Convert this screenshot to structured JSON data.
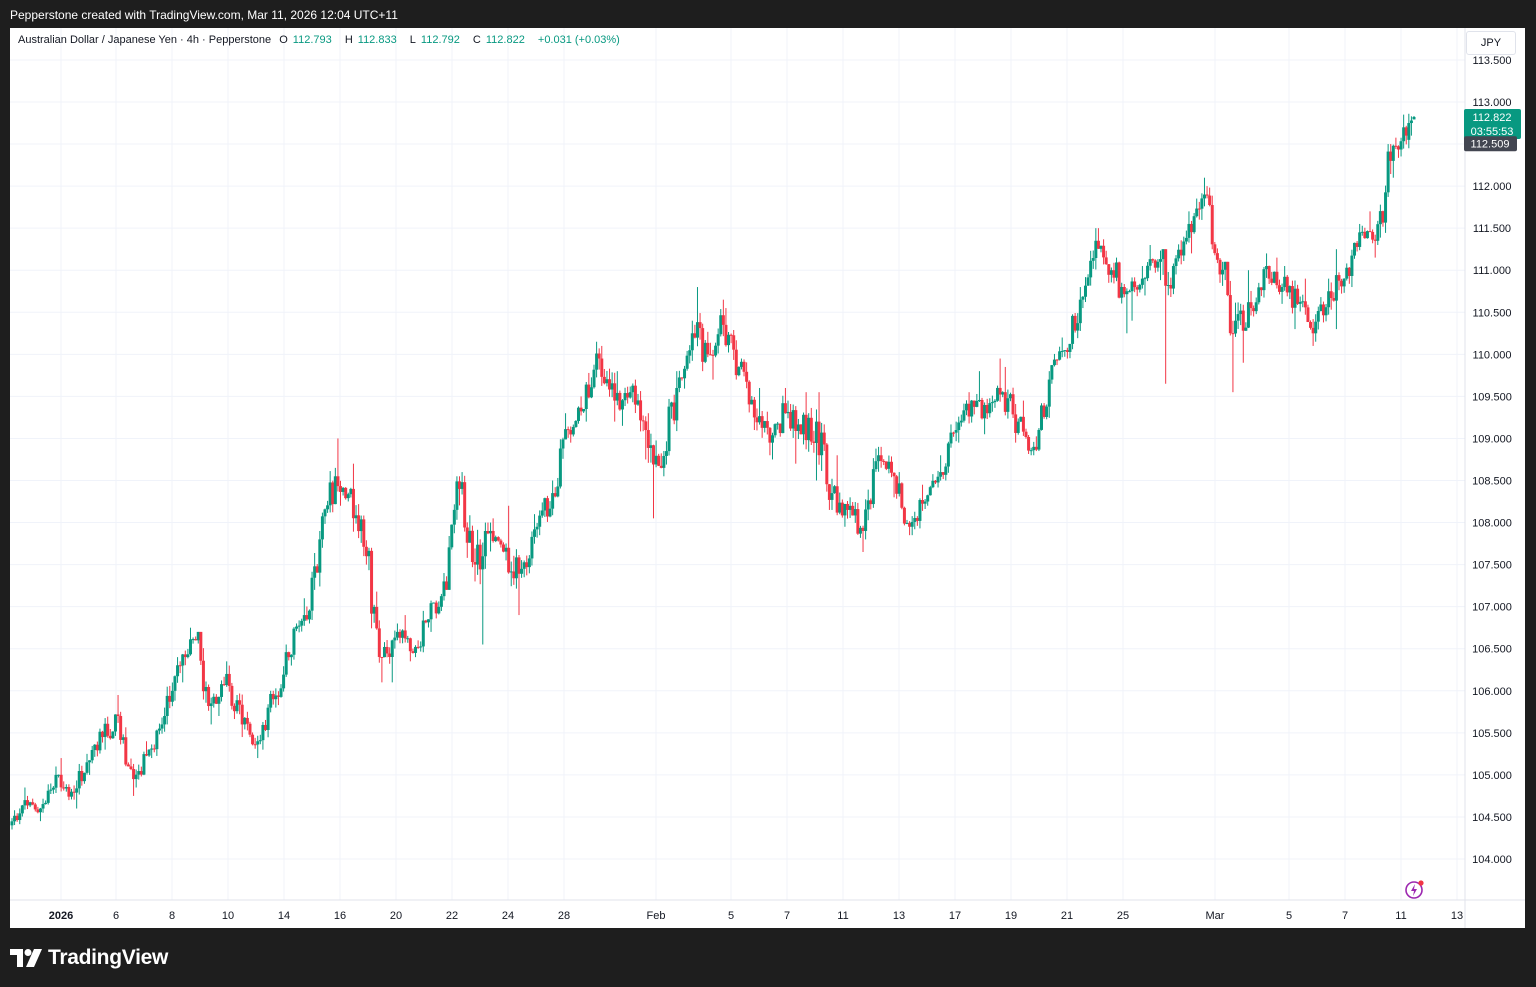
{
  "header": {
    "caption": "Pepperstone created with TradingView.com, Mar 11, 2026 12:04 UTC+11"
  },
  "legend": {
    "symbol": "Australian Dollar / Japanese Yen · 4h · Pepperstone",
    "open_label": "O",
    "open": "112.793",
    "high_label": "H",
    "high": "112.833",
    "low_label": "L",
    "low": "112.792",
    "close_label": "C",
    "close": "112.822",
    "change": "+0.031 (+0.03%)"
  },
  "currency_button": "JPY",
  "price_labels": {
    "last_price": "112.822",
    "countdown": "03:55:53",
    "prev_close": "112.509"
  },
  "footer": {
    "brand": "TradingView"
  },
  "colors": {
    "up": "#089981",
    "down": "#f23645",
    "grid": "#f0f3fa",
    "axis_text": "#131722",
    "prev_close_bg": "#434651"
  },
  "icons": [
    "tradingview-logo-icon",
    "bolt-icon"
  ],
  "chart_data": {
    "type": "candlestick",
    "title": "Australian Dollar / Japanese Yen · 4h · Pepperstone",
    "ylim": [
      103.6,
      113.8
    ],
    "y_ticks": [
      "104.000",
      "104.500",
      "105.000",
      "105.500",
      "106.000",
      "106.500",
      "107.000",
      "107.500",
      "108.000",
      "108.500",
      "109.000",
      "109.500",
      "110.000",
      "110.500",
      "111.000",
      "111.500",
      "112.000",
      "113.000",
      "113.500"
    ],
    "x_ticks": [
      {
        "label": "2026",
        "bold": true
      },
      {
        "label": "6"
      },
      {
        "label": "8"
      },
      {
        "label": "10"
      },
      {
        "label": "14"
      },
      {
        "label": "16"
      },
      {
        "label": "20"
      },
      {
        "label": "22"
      },
      {
        "label": "24"
      },
      {
        "label": "28"
      },
      {
        "label": "Feb"
      },
      {
        "label": "5"
      },
      {
        "label": "7"
      },
      {
        "label": "11"
      },
      {
        "label": "13"
      },
      {
        "label": "17"
      },
      {
        "label": "19"
      },
      {
        "label": "21"
      },
      {
        "label": "25"
      },
      {
        "label": "Mar"
      },
      {
        "label": "5"
      },
      {
        "label": "7"
      },
      {
        "label": "11"
      },
      {
        "label": "13"
      }
    ],
    "bars_per_day": 6,
    "days": [
      {
        "o": 104.4,
        "h": 104.85,
        "l": 104.35,
        "c": 104.7
      },
      {
        "o": 104.7,
        "h": 104.75,
        "l": 104.45,
        "c": 104.6
      },
      {
        "o": 104.6,
        "h": 105.1,
        "l": 104.55,
        "c": 105.0
      },
      {
        "o": 105.0,
        "h": 105.2,
        "l": 104.7,
        "c": 104.8
      },
      {
        "o": 104.8,
        "h": 105.25,
        "l": 104.6,
        "c": 105.15
      },
      {
        "o": 105.15,
        "h": 105.55,
        "l": 105.0,
        "c": 105.45
      },
      {
        "o": 105.45,
        "h": 105.95,
        "l": 105.3,
        "c": 105.7
      },
      {
        "o": 105.7,
        "h": 105.75,
        "l": 104.75,
        "c": 104.95
      },
      {
        "o": 104.95,
        "h": 105.4,
        "l": 104.85,
        "c": 105.3
      },
      {
        "o": 105.3,
        "h": 105.8,
        "l": 105.2,
        "c": 105.7
      },
      {
        "o": 105.7,
        "h": 106.4,
        "l": 105.6,
        "c": 106.3
      },
      {
        "o": 106.3,
        "h": 106.75,
        "l": 106.1,
        "c": 106.6
      },
      {
        "o": 106.6,
        "h": 106.7,
        "l": 105.6,
        "c": 105.85
      },
      {
        "o": 105.85,
        "h": 106.35,
        "l": 105.7,
        "c": 106.2
      },
      {
        "o": 106.2,
        "h": 106.3,
        "l": 105.45,
        "c": 105.6
      },
      {
        "o": 105.6,
        "h": 105.75,
        "l": 105.2,
        "c": 105.4
      },
      {
        "o": 105.4,
        "h": 106.0,
        "l": 105.3,
        "c": 105.9
      },
      {
        "o": 105.9,
        "h": 106.55,
        "l": 105.8,
        "c": 106.4
      },
      {
        "o": 106.4,
        "h": 107.1,
        "l": 106.3,
        "c": 106.9
      },
      {
        "o": 106.9,
        "h": 107.9,
        "l": 106.8,
        "c": 107.8
      },
      {
        "o": 107.8,
        "h": 108.65,
        "l": 107.7,
        "c": 108.55
      },
      {
        "o": 108.55,
        "h": 109.0,
        "l": 108.2,
        "c": 108.4
      },
      {
        "o": 108.4,
        "h": 108.7,
        "l": 107.5,
        "c": 107.6
      },
      {
        "o": 107.6,
        "h": 107.7,
        "l": 106.1,
        "c": 106.4
      },
      {
        "o": 106.4,
        "h": 106.8,
        "l": 106.1,
        "c": 106.7
      },
      {
        "o": 106.7,
        "h": 106.9,
        "l": 106.35,
        "c": 106.45
      },
      {
        "o": 106.45,
        "h": 106.95,
        "l": 106.4,
        "c": 106.85
      },
      {
        "o": 106.85,
        "h": 107.4,
        "l": 106.7,
        "c": 107.3
      },
      {
        "o": 107.3,
        "h": 108.55,
        "l": 107.2,
        "c": 108.4
      },
      {
        "o": 108.4,
        "h": 108.6,
        "l": 107.3,
        "c": 107.5
      },
      {
        "o": 107.5,
        "h": 108.0,
        "l": 106.55,
        "c": 107.9
      },
      {
        "o": 107.9,
        "h": 108.05,
        "l": 107.55,
        "c": 107.7
      },
      {
        "o": 107.7,
        "h": 108.2,
        "l": 106.9,
        "c": 107.45
      },
      {
        "o": 107.45,
        "h": 108.1,
        "l": 107.35,
        "c": 107.95
      },
      {
        "o": 107.95,
        "h": 108.5,
        "l": 107.85,
        "c": 108.35
      },
      {
        "o": 108.35,
        "h": 109.3,
        "l": 108.3,
        "c": 109.1
      },
      {
        "o": 109.1,
        "h": 109.5,
        "l": 108.95,
        "c": 109.35
      },
      {
        "o": 109.35,
        "h": 110.15,
        "l": 109.2,
        "c": 109.95
      },
      {
        "o": 109.95,
        "h": 110.1,
        "l": 109.2,
        "c": 109.45
      },
      {
        "o": 109.45,
        "h": 109.8,
        "l": 109.15,
        "c": 109.55
      },
      {
        "o": 109.55,
        "h": 109.7,
        "l": 108.75,
        "c": 109.1
      },
      {
        "o": 109.1,
        "h": 109.3,
        "l": 108.05,
        "c": 108.65
      },
      {
        "o": 108.65,
        "h": 109.8,
        "l": 108.55,
        "c": 109.6
      },
      {
        "o": 109.6,
        "h": 110.4,
        "l": 109.55,
        "c": 110.25
      },
      {
        "o": 110.25,
        "h": 110.8,
        "l": 109.8,
        "c": 110.0
      },
      {
        "o": 110.0,
        "h": 110.65,
        "l": 109.7,
        "c": 110.35
      },
      {
        "o": 110.35,
        "h": 110.55,
        "l": 109.7,
        "c": 109.85
      },
      {
        "o": 109.85,
        "h": 109.95,
        "l": 109.1,
        "c": 109.25
      },
      {
        "o": 109.25,
        "h": 109.6,
        "l": 108.8,
        "c": 108.95
      },
      {
        "o": 108.95,
        "h": 109.6,
        "l": 108.75,
        "c": 109.3
      },
      {
        "o": 109.3,
        "h": 109.45,
        "l": 108.7,
        "c": 109.05
      },
      {
        "o": 109.05,
        "h": 109.55,
        "l": 108.5,
        "c": 109.2
      },
      {
        "o": 109.2,
        "h": 109.55,
        "l": 108.15,
        "c": 108.35
      },
      {
        "o": 108.35,
        "h": 108.8,
        "l": 107.95,
        "c": 108.15
      },
      {
        "o": 108.15,
        "h": 108.3,
        "l": 107.65,
        "c": 107.9
      },
      {
        "o": 107.9,
        "h": 108.9,
        "l": 107.8,
        "c": 108.8
      },
      {
        "o": 108.8,
        "h": 108.9,
        "l": 108.3,
        "c": 108.55
      },
      {
        "o": 108.55,
        "h": 108.6,
        "l": 107.85,
        "c": 107.95
      },
      {
        "o": 107.95,
        "h": 108.45,
        "l": 107.85,
        "c": 108.25
      },
      {
        "o": 108.25,
        "h": 108.8,
        "l": 108.2,
        "c": 108.6
      },
      {
        "o": 108.6,
        "h": 109.2,
        "l": 108.5,
        "c": 109.1
      },
      {
        "o": 109.1,
        "h": 109.55,
        "l": 108.95,
        "c": 109.45
      },
      {
        "o": 109.45,
        "h": 109.8,
        "l": 109.05,
        "c": 109.3
      },
      {
        "o": 109.3,
        "h": 109.95,
        "l": 109.25,
        "c": 109.55
      },
      {
        "o": 109.55,
        "h": 109.85,
        "l": 108.95,
        "c": 109.2
      },
      {
        "o": 109.2,
        "h": 109.45,
        "l": 108.8,
        "c": 108.9
      },
      {
        "o": 108.9,
        "h": 109.8,
        "l": 108.85,
        "c": 109.7
      },
      {
        "o": 109.7,
        "h": 110.2,
        "l": 109.65,
        "c": 110.05
      },
      {
        "o": 110.05,
        "h": 110.8,
        "l": 109.95,
        "c": 110.65
      },
      {
        "o": 110.65,
        "h": 111.5,
        "l": 110.55,
        "c": 111.35
      },
      {
        "o": 111.35,
        "h": 111.5,
        "l": 110.85,
        "c": 111.0
      },
      {
        "o": 111.0,
        "h": 111.15,
        "l": 110.25,
        "c": 110.75
      },
      {
        "o": 110.75,
        "h": 111.05,
        "l": 110.4,
        "c": 110.9
      },
      {
        "o": 110.9,
        "h": 111.3,
        "l": 110.7,
        "c": 111.1
      },
      {
        "o": 111.1,
        "h": 111.25,
        "l": 109.65,
        "c": 111.05
      },
      {
        "o": 111.05,
        "h": 111.7,
        "l": 110.95,
        "c": 111.55
      },
      {
        "o": 111.55,
        "h": 112.1,
        "l": 111.2,
        "c": 111.9
      },
      {
        "o": 111.9,
        "h": 112.0,
        "l": 110.85,
        "c": 110.95
      },
      {
        "o": 110.95,
        "h": 111.1,
        "l": 109.55,
        "c": 110.4
      },
      {
        "o": 110.4,
        "h": 111.0,
        "l": 109.9,
        "c": 110.55
      },
      {
        "o": 110.55,
        "h": 111.2,
        "l": 110.45,
        "c": 111.05
      },
      {
        "o": 111.05,
        "h": 111.15,
        "l": 110.6,
        "c": 110.8
      },
      {
        "o": 110.8,
        "h": 111.05,
        "l": 110.3,
        "c": 110.6
      },
      {
        "o": 110.6,
        "h": 110.9,
        "l": 110.1,
        "c": 110.25
      },
      {
        "o": 110.25,
        "h": 110.9,
        "l": 110.15,
        "c": 110.75
      },
      {
        "o": 110.75,
        "h": 111.25,
        "l": 110.3,
        "c": 110.9
      },
      {
        "o": 110.9,
        "h": 111.55,
        "l": 110.8,
        "c": 111.45
      },
      {
        "o": 111.45,
        "h": 111.7,
        "l": 111.15,
        "c": 111.35
      },
      {
        "o": 111.35,
        "h": 112.5,
        "l": 111.3,
        "c": 112.3
      },
      {
        "o": 112.3,
        "h": 112.85,
        "l": 112.1,
        "c": 112.6
      }
    ],
    "last_bars": [
      {
        "o": 112.55,
        "h": 112.86,
        "l": 112.45,
        "c": 112.75
      },
      {
        "o": 112.75,
        "h": 112.83,
        "l": 112.6,
        "c": 112.78
      },
      {
        "o": 112.793,
        "h": 112.833,
        "l": 112.792,
        "c": 112.822
      }
    ],
    "last_price": 112.822,
    "prev_close": 112.509
  }
}
